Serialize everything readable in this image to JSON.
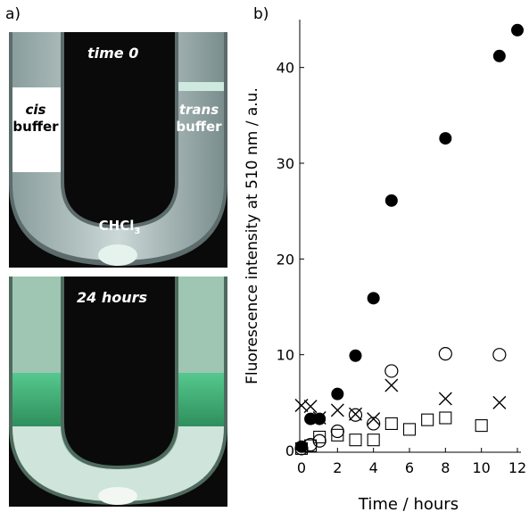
{
  "panel_a_label": "a)",
  "panel_b_label": "b)",
  "photo_top": {
    "caption": "time 0",
    "cis_word": "cis",
    "cis_buffer": "buffer",
    "trans_word": "trans",
    "trans_buffer": "buffer",
    "chcl3": "CHCl",
    "chcl3_sub": "3"
  },
  "photo_bottom": {
    "caption": "24 hours"
  },
  "chart_data": {
    "type": "scatter",
    "xlabel": "Time / hours",
    "ylabel": "Fluorescence intensity at 510 nm / a.u.",
    "xlim": [
      0,
      12
    ],
    "ylim": [
      0,
      45
    ],
    "xticks": [
      0,
      2,
      4,
      6,
      8,
      10,
      12
    ],
    "yticks": [
      0,
      10,
      20,
      30,
      40
    ],
    "grid": false,
    "legend": "none",
    "series": [
      {
        "marker": "filled-circle",
        "points": [
          [
            0,
            0.4
          ],
          [
            0.5,
            3.3
          ],
          [
            1,
            3.3
          ],
          [
            2,
            5.9
          ],
          [
            3,
            9.9
          ],
          [
            4,
            15.9
          ],
          [
            5,
            26.1
          ],
          [
            8,
            32.6
          ],
          [
            11,
            41.2
          ],
          [
            12,
            43.9
          ]
        ]
      },
      {
        "marker": "open-circle",
        "points": [
          [
            0,
            0.2
          ],
          [
            0.5,
            0.6
          ],
          [
            1,
            1.0
          ],
          [
            2,
            2.0
          ],
          [
            3,
            3.7
          ],
          [
            4,
            2.8
          ],
          [
            5,
            8.3
          ],
          [
            8,
            10.1
          ],
          [
            11,
            10.0
          ]
        ]
      },
      {
        "marker": "cross",
        "points": [
          [
            0,
            4.7
          ],
          [
            0.5,
            4.6
          ],
          [
            1,
            3.4
          ],
          [
            2,
            4.2
          ],
          [
            3,
            3.8
          ],
          [
            4,
            3.3
          ],
          [
            5,
            6.8
          ],
          [
            8,
            5.4
          ],
          [
            11,
            5.0
          ]
        ]
      },
      {
        "marker": "open-square",
        "points": [
          [
            0,
            0.2
          ],
          [
            0.5,
            0.5
          ],
          [
            1,
            1.4
          ],
          [
            2,
            1.6
          ],
          [
            3,
            1.1
          ],
          [
            4,
            1.1
          ],
          [
            5,
            2.8
          ],
          [
            6,
            2.2
          ],
          [
            7,
            3.2
          ],
          [
            8,
            3.4
          ],
          [
            10,
            2.6
          ]
        ]
      }
    ]
  }
}
